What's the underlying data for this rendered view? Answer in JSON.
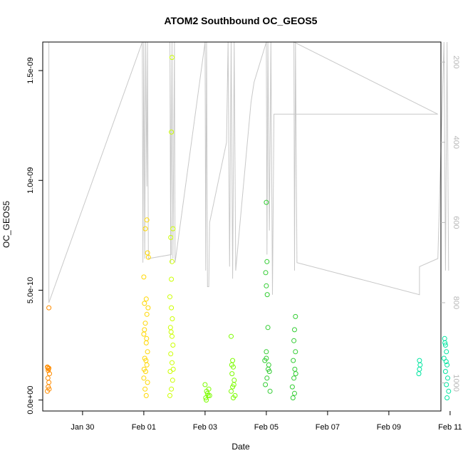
{
  "chart_data": {
    "type": "scatter",
    "title": "ATOM2 Southbound OC_GEOS5",
    "xlabel": "Date",
    "ylabel": "OC_GEOS5",
    "xlim": [
      -2.3,
      10.7
    ],
    "ylim": [
      -5e-11,
      1.63e-09
    ],
    "x_ticks": [
      {
        "value": -1,
        "label": "Jan 30"
      },
      {
        "value": 1,
        "label": "Feb 01"
      },
      {
        "value": 3,
        "label": "Feb 03"
      },
      {
        "value": 5,
        "label": "Feb 05"
      },
      {
        "value": 7,
        "label": "Feb 07"
      },
      {
        "value": 9,
        "label": "Feb 09"
      },
      {
        "value": 11,
        "label": "Feb 11"
      }
    ],
    "y_ticks": [
      {
        "value": 0,
        "label": "0.0e+00"
      },
      {
        "value": 5e-10,
        "label": "5.0e-10"
      },
      {
        "value": 1e-09,
        "label": "1.0e-09"
      },
      {
        "value": 1.5e-09,
        "label": "1.5e-09"
      }
    ],
    "y2_ticks": [
      {
        "value": 200,
        "label": "200"
      },
      {
        "value": 400,
        "label": "400"
      },
      {
        "value": 600,
        "label": "600"
      },
      {
        "value": 800,
        "label": "800"
      },
      {
        "value": 1000,
        "label": "1000"
      }
    ],
    "y2lim": [
      150,
      1070
    ],
    "y2_reversed": true,
    "grid": false,
    "series": [
      {
        "color": "#ff8c00",
        "points": [
          [
            -2.1,
            4.2e-10
          ],
          [
            -2.15,
            1.5e-10
          ],
          [
            -2.1,
            1.45e-10
          ],
          [
            -2.12,
            1.35e-10
          ],
          [
            -2.08,
            1.2e-10
          ],
          [
            -2.13,
            1e-10
          ],
          [
            -2.1,
            8e-11
          ],
          [
            -2.12,
            6e-11
          ],
          [
            -2.15,
            4e-11
          ],
          [
            -2.09,
            5e-11
          ],
          [
            -2.11,
            1.42e-10
          ],
          [
            -2.14,
            1.48e-10
          ]
        ]
      },
      {
        "color": "#ffd700",
        "points": [
          [
            1.0,
            5.6e-10
          ],
          [
            1.1,
            8.2e-10
          ],
          [
            1.05,
            7.8e-10
          ],
          [
            1.12,
            6.7e-10
          ],
          [
            1.15,
            6.5e-10
          ],
          [
            1.08,
            4.6e-10
          ],
          [
            1.02,
            4.4e-10
          ],
          [
            1.1,
            3.9e-10
          ],
          [
            1.05,
            3.5e-10
          ],
          [
            1.0,
            3e-10
          ],
          [
            1.08,
            2.6e-10
          ],
          [
            1.12,
            2.2e-10
          ],
          [
            1.03,
            1.9e-10
          ],
          [
            1.1,
            1.6e-10
          ],
          [
            1.06,
            1.3e-10
          ],
          [
            1.0,
            1e-10
          ],
          [
            1.12,
            8e-11
          ],
          [
            1.04,
            5e-11
          ],
          [
            1.08,
            2e-11
          ],
          [
            1.14,
            4.2e-10
          ],
          [
            1.02,
            3.2e-10
          ],
          [
            1.09,
            2.8e-10
          ],
          [
            1.07,
            1.8e-10
          ],
          [
            1.01,
            1.4e-10
          ]
        ]
      },
      {
        "color": "#ccff00",
        "points": [
          [
            1.92,
            1.56e-09
          ],
          [
            1.9,
            1.22e-09
          ],
          [
            1.95,
            7.8e-10
          ],
          [
            1.88,
            7.4e-10
          ],
          [
            1.92,
            6.3e-10
          ],
          [
            1.9,
            5.5e-10
          ],
          [
            1.85,
            4.7e-10
          ],
          [
            1.9,
            4.2e-10
          ],
          [
            1.93,
            3.7e-10
          ],
          [
            1.87,
            3.3e-10
          ],
          [
            1.92,
            2.9e-10
          ],
          [
            1.95,
            2.5e-10
          ],
          [
            1.88,
            2.1e-10
          ],
          [
            1.92,
            1.7e-10
          ],
          [
            1.86,
            1.3e-10
          ],
          [
            1.94,
            9e-11
          ],
          [
            1.9,
            5e-11
          ],
          [
            1.85,
            2e-11
          ],
          [
            1.96,
            1.4e-10
          ],
          [
            1.89,
            3.1e-10
          ]
        ]
      },
      {
        "color": "#7cfc00",
        "points": [
          [
            3.0,
            7e-11
          ],
          [
            3.05,
            4e-11
          ],
          [
            3.1,
            2e-11
          ],
          [
            3.02,
            1e-11
          ],
          [
            3.08,
            3e-11
          ],
          [
            3.12,
            5e-11
          ],
          [
            3.04,
            0
          ],
          [
            3.15,
            2e-11
          ],
          [
            3.85,
            2.9e-10
          ],
          [
            3.9,
            1.8e-10
          ],
          [
            3.92,
            1.5e-10
          ],
          [
            3.88,
            1.2e-10
          ],
          [
            3.95,
            9e-11
          ],
          [
            3.9,
            6e-11
          ],
          [
            3.85,
            4e-11
          ],
          [
            3.98,
            2e-11
          ],
          [
            3.92,
            1e-11
          ],
          [
            3.87,
            1.6e-10
          ],
          [
            3.94,
            7e-11
          ]
        ]
      },
      {
        "color": "#32cd32",
        "points": [
          [
            5.0,
            9e-10
          ],
          [
            5.02,
            6.3e-10
          ],
          [
            4.98,
            5.8e-10
          ],
          [
            5.0,
            5.2e-10
          ],
          [
            5.03,
            4.8e-10
          ],
          [
            5.05,
            3.3e-10
          ],
          [
            5.0,
            2.2e-10
          ],
          [
            4.95,
            1.8e-10
          ],
          [
            5.08,
            1.6e-10
          ],
          [
            5.1,
            1.3e-10
          ],
          [
            5.02,
            1e-10
          ],
          [
            4.97,
            7e-11
          ],
          [
            5.12,
            4e-11
          ],
          [
            5.06,
            1.4e-10
          ],
          [
            5.0,
            1.9e-10
          ],
          [
            5.95,
            3.8e-10
          ],
          [
            5.92,
            3.2e-10
          ],
          [
            5.9,
            2.7e-10
          ],
          [
            5.95,
            2.2e-10
          ],
          [
            5.88,
            1.8e-10
          ],
          [
            5.93,
            1.4e-10
          ],
          [
            5.9,
            1e-10
          ],
          [
            5.85,
            6e-11
          ],
          [
            5.92,
            3e-11
          ],
          [
            5.87,
            1e-11
          ],
          [
            5.96,
            1.2e-10
          ]
        ]
      },
      {
        "color": "#00e5a0",
        "points": [
          [
            10.0,
            1.8e-10
          ],
          [
            10.02,
            1.6e-10
          ],
          [
            10.0,
            1.4e-10
          ],
          [
            9.98,
            1.2e-10
          ],
          [
            10.82,
            2.8e-10
          ],
          [
            10.85,
            2.5e-10
          ],
          [
            10.88,
            2.2e-10
          ],
          [
            10.8,
            1.9e-10
          ],
          [
            10.9,
            1.6e-10
          ],
          [
            10.85,
            1.3e-10
          ],
          [
            10.92,
            1e-10
          ],
          [
            10.88,
            7e-11
          ],
          [
            10.95,
            4e-11
          ],
          [
            10.9,
            1e-11
          ],
          [
            10.83,
            2.6e-10
          ],
          [
            10.87,
            1.75e-10
          ]
        ]
      }
    ],
    "pressure_trace": [
      [
        -2.1,
        150
      ],
      [
        -2.1,
        800
      ],
      [
        0.95,
        150
      ],
      [
        0.97,
        700
      ],
      [
        1.0,
        150
      ],
      [
        1.03,
        690
      ],
      [
        1.06,
        150
      ],
      [
        1.1,
        510
      ],
      [
        1.12,
        150
      ],
      [
        1.15,
        690
      ],
      [
        1.9,
        680
      ],
      [
        1.85,
        150
      ],
      [
        1.88,
        700
      ],
      [
        1.92,
        150
      ],
      [
        1.95,
        690
      ],
      [
        2.0,
        150
      ],
      [
        2.02,
        700
      ],
      [
        3.0,
        150
      ],
      [
        3.02,
        720
      ],
      [
        3.05,
        150
      ],
      [
        3.08,
        760
      ],
      [
        3.12,
        760
      ],
      [
        3.15,
        600
      ],
      [
        3.7,
        400
      ],
      [
        3.75,
        150
      ],
      [
        3.8,
        710
      ],
      [
        3.85,
        150
      ],
      [
        3.9,
        740
      ],
      [
        3.95,
        150
      ],
      [
        4.0,
        720
      ],
      [
        4.5,
        300
      ],
      [
        4.6,
        250
      ],
      [
        5.0,
        150
      ],
      [
        5.02,
        680
      ],
      [
        5.05,
        150
      ],
      [
        5.1,
        620
      ],
      [
        5.15,
        150
      ],
      [
        5.2,
        780
      ],
      [
        5.25,
        330
      ],
      [
        7.0,
        330
      ],
      [
        8.5,
        330
      ],
      [
        10.0,
        330
      ],
      [
        10.6,
        330
      ],
      [
        5.9,
        150
      ],
      [
        5.92,
        720
      ],
      [
        5.95,
        150
      ],
      [
        6.0,
        700
      ],
      [
        10.0,
        780
      ],
      [
        10.0,
        710
      ],
      [
        10.6,
        690
      ],
      [
        10.8,
        150
      ],
      [
        10.85,
        720
      ],
      [
        10.9,
        150
      ],
      [
        10.95,
        720
      ]
    ],
    "pressure_color": "#c8c8c8"
  }
}
